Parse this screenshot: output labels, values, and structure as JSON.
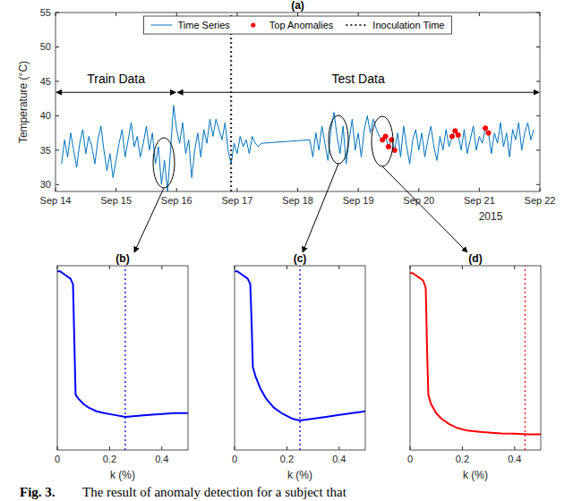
{
  "chart_data": [
    {
      "type": "line",
      "title": "(a)",
      "ylabel": "Temperature (°C)",
      "xlabel": "2015",
      "xlim": [
        14,
        22
      ],
      "xticks": [
        {
          "value": 14,
          "label": "Sep 14"
        },
        {
          "value": 15,
          "label": "Sep 15"
        },
        {
          "value": 16,
          "label": "Sep 16"
        },
        {
          "value": 17,
          "label": "Sep 17"
        },
        {
          "value": 18,
          "label": "Sep 18"
        },
        {
          "value": 19,
          "label": "Sep 19"
        },
        {
          "value": 20,
          "label": "Sep 20"
        },
        {
          "value": 21,
          "label": "Sep 21"
        },
        {
          "value": 22,
          "label": "Sep 22"
        }
      ],
      "ylim": [
        29,
        55
      ],
      "yticks": [
        30,
        35,
        40,
        45,
        50,
        55
      ],
      "grid": false,
      "legend": "top",
      "series": [
        {
          "name": "Time Series",
          "type": "line",
          "color": "#0072bd",
          "x": [
            14.1,
            14.15,
            14.2,
            14.25,
            14.3,
            14.35,
            14.4,
            14.45,
            14.5,
            14.55,
            14.6,
            14.65,
            14.7,
            14.75,
            14.8,
            14.85,
            14.9,
            14.95,
            15.0,
            15.05,
            15.1,
            15.15,
            15.2,
            15.25,
            15.3,
            15.35,
            15.4,
            15.45,
            15.5,
            15.55,
            15.6,
            15.65,
            15.7,
            15.75,
            15.8,
            15.85,
            15.9,
            15.95,
            16.0,
            16.05,
            16.1,
            16.15,
            16.2,
            16.25,
            16.3,
            16.35,
            16.4,
            16.45,
            16.5,
            16.55,
            16.6,
            16.65,
            16.7,
            16.75,
            16.8,
            16.85,
            16.9,
            16.95,
            17.0,
            17.05,
            17.1,
            17.15,
            17.2,
            17.25,
            17.3,
            17.35,
            17.4,
            18.2,
            18.25,
            18.3,
            18.35,
            18.4,
            18.45,
            18.5,
            18.55,
            18.6,
            18.65,
            18.7,
            18.75,
            18.8,
            18.85,
            18.9,
            18.95,
            19.0,
            19.05,
            19.1,
            19.15,
            19.2,
            19.25,
            19.3,
            19.35,
            19.4,
            19.45,
            19.5,
            19.55,
            19.6,
            19.65,
            19.7,
            19.75,
            19.8,
            19.85,
            19.9,
            19.95,
            20.0,
            20.05,
            20.1,
            20.15,
            20.2,
            20.25,
            20.3,
            20.35,
            20.4,
            20.45,
            20.5,
            20.55,
            20.6,
            20.65,
            20.7,
            20.75,
            20.8,
            20.85,
            20.9,
            20.95,
            21.0,
            21.05,
            21.1,
            21.15,
            21.2,
            21.25,
            21.3,
            21.35,
            21.4,
            21.45,
            21.5,
            21.55,
            21.6,
            21.65,
            21.7,
            21.75,
            21.8,
            21.85,
            21.9
          ],
          "values": [
            33.0,
            36.5,
            34.0,
            37.5,
            35.0,
            32.5,
            36.0,
            38.0,
            34.5,
            37.0,
            35.5,
            33.0,
            36.5,
            38.5,
            35.0,
            32.0,
            34.5,
            31.0,
            33.5,
            36.0,
            38.0,
            34.0,
            36.5,
            39.0,
            35.5,
            37.0,
            34.0,
            36.0,
            38.5,
            35.0,
            37.5,
            33.0,
            35.5,
            30.0,
            33.5,
            29.0,
            35.0,
            41.5,
            38.0,
            36.0,
            39.0,
            34.5,
            36.5,
            31.0,
            35.0,
            37.5,
            34.0,
            38.0,
            36.0,
            39.5,
            37.0,
            39.5,
            38.0,
            36.5,
            39.0,
            35.0,
            33.0,
            36.0,
            34.5,
            37.0,
            35.5,
            36.5,
            34.5,
            37.0,
            36.0,
            35.5,
            36.0,
            36.5,
            34.0,
            37.5,
            35.0,
            38.5,
            36.0,
            33.5,
            38.0,
            40.5,
            37.0,
            34.5,
            38.5,
            33.0,
            36.5,
            39.5,
            35.0,
            37.5,
            34.0,
            38.0,
            40.0,
            37.5,
            39.5,
            38.0,
            37.0,
            36.5,
            37.0,
            35.5,
            36.5,
            35.0,
            37.5,
            34.0,
            38.5,
            35.5,
            33.0,
            36.5,
            38.0,
            35.0,
            37.5,
            34.0,
            36.5,
            38.5,
            35.5,
            33.5,
            37.0,
            35.0,
            38.0,
            35.5,
            37.0,
            37.8,
            37.2,
            35.0,
            38.0,
            34.5,
            36.5,
            38.5,
            35.0,
            37.0,
            36.0,
            38.2,
            37.5,
            34.5,
            37.5,
            36.0,
            39.0,
            35.5,
            37.5,
            34.0,
            38.0,
            36.5,
            39.0,
            35.0,
            37.5,
            39.0,
            36.5,
            38.0
          ]
        },
        {
          "name": "Top Anomalies",
          "type": "scatter",
          "color": "#ff0000",
          "marker": "circle",
          "x": [
            19.4,
            19.45,
            19.5,
            19.55,
            19.6,
            20.55,
            20.6,
            20.65,
            21.1,
            21.15
          ],
          "values": [
            36.5,
            37.0,
            35.5,
            36.5,
            35.0,
            37.0,
            37.8,
            37.2,
            38.2,
            37.5
          ]
        },
        {
          "name": "Inoculation Time",
          "type": "line",
          "color": "#333333",
          "line_style": "dotted",
          "x": [
            16.9,
            16.9
          ],
          "values": [
            29,
            55
          ]
        }
      ],
      "annotations": [
        {
          "text": "Train Data",
          "x": [
            14,
            16
          ],
          "y": 43.4
        },
        {
          "text": "Test Data",
          "x": [
            16,
            22
          ],
          "y": 43.4
        }
      ]
    },
    {
      "type": "line",
      "title": "(b)",
      "xlabel": "k (%)",
      "xlim": [
        0,
        0.5
      ],
      "xticks": [
        0,
        0.2,
        0.4
      ],
      "ylim": [
        0,
        1
      ],
      "tick_labels": "x",
      "grid": false,
      "series": [
        {
          "type": "line",
          "color": "#0000ff",
          "x": [
            0,
            0.01,
            0.02,
            0.03,
            0.04,
            0.05,
            0.06,
            0.065,
            0.07,
            0.08,
            0.1,
            0.12,
            0.15,
            0.18,
            0.22,
            0.26,
            0.3,
            0.35,
            0.4,
            0.45,
            0.5
          ],
          "values": [
            0.97,
            0.97,
            0.96,
            0.95,
            0.94,
            0.93,
            0.9,
            0.6,
            0.3,
            0.28,
            0.25,
            0.23,
            0.21,
            0.2,
            0.19,
            0.18,
            0.185,
            0.19,
            0.195,
            0.2,
            0.2
          ]
        },
        {
          "type": "line",
          "color": "#0000ff",
          "line_style": "dotted",
          "x": [
            0.26,
            0.26
          ],
          "values": [
            0,
            1
          ]
        }
      ]
    },
    {
      "type": "line",
      "title": "(c)",
      "xlabel": "k (%)",
      "xlim": [
        0,
        0.5
      ],
      "xticks": [
        0,
        0.2,
        0.4
      ],
      "ylim": [
        0,
        1
      ],
      "tick_labels": "x",
      "grid": false,
      "series": [
        {
          "type": "line",
          "color": "#0000ff",
          "x": [
            0,
            0.01,
            0.02,
            0.03,
            0.04,
            0.05,
            0.06,
            0.065,
            0.07,
            0.08,
            0.1,
            0.12,
            0.15,
            0.18,
            0.22,
            0.25,
            0.3,
            0.35,
            0.4,
            0.45,
            0.5
          ],
          "values": [
            0.97,
            0.97,
            0.96,
            0.95,
            0.94,
            0.93,
            0.9,
            0.7,
            0.45,
            0.4,
            0.33,
            0.28,
            0.23,
            0.2,
            0.17,
            0.16,
            0.17,
            0.18,
            0.19,
            0.2,
            0.21
          ]
        },
        {
          "type": "line",
          "color": "#0000ff",
          "line_style": "dotted",
          "x": [
            0.25,
            0.25
          ],
          "values": [
            0,
            1
          ]
        }
      ]
    },
    {
      "type": "line",
      "title": "(d)",
      "xlabel": "k (%)",
      "xlim": [
        0,
        0.5
      ],
      "xticks": [
        0,
        0.2,
        0.4
      ],
      "ylim": [
        0,
        1
      ],
      "tick_labels": "x",
      "grid": false,
      "series": [
        {
          "type": "line",
          "color": "#ff0000",
          "x": [
            0,
            0.01,
            0.02,
            0.03,
            0.04,
            0.05,
            0.06,
            0.065,
            0.07,
            0.08,
            0.1,
            0.12,
            0.15,
            0.18,
            0.22,
            0.26,
            0.3,
            0.35,
            0.4,
            0.45,
            0.5
          ],
          "values": [
            0.96,
            0.96,
            0.95,
            0.94,
            0.93,
            0.92,
            0.88,
            0.55,
            0.3,
            0.25,
            0.2,
            0.17,
            0.14,
            0.12,
            0.105,
            0.1,
            0.095,
            0.09,
            0.088,
            0.085,
            0.085
          ]
        },
        {
          "type": "line",
          "color": "#ff0000",
          "line_style": "dotted",
          "x": [
            0.44,
            0.44
          ],
          "values": [
            0,
            1
          ]
        }
      ]
    }
  ],
  "caption": {
    "label": "Fig. 3.",
    "text": "The result of anomaly detection for a subject that"
  }
}
